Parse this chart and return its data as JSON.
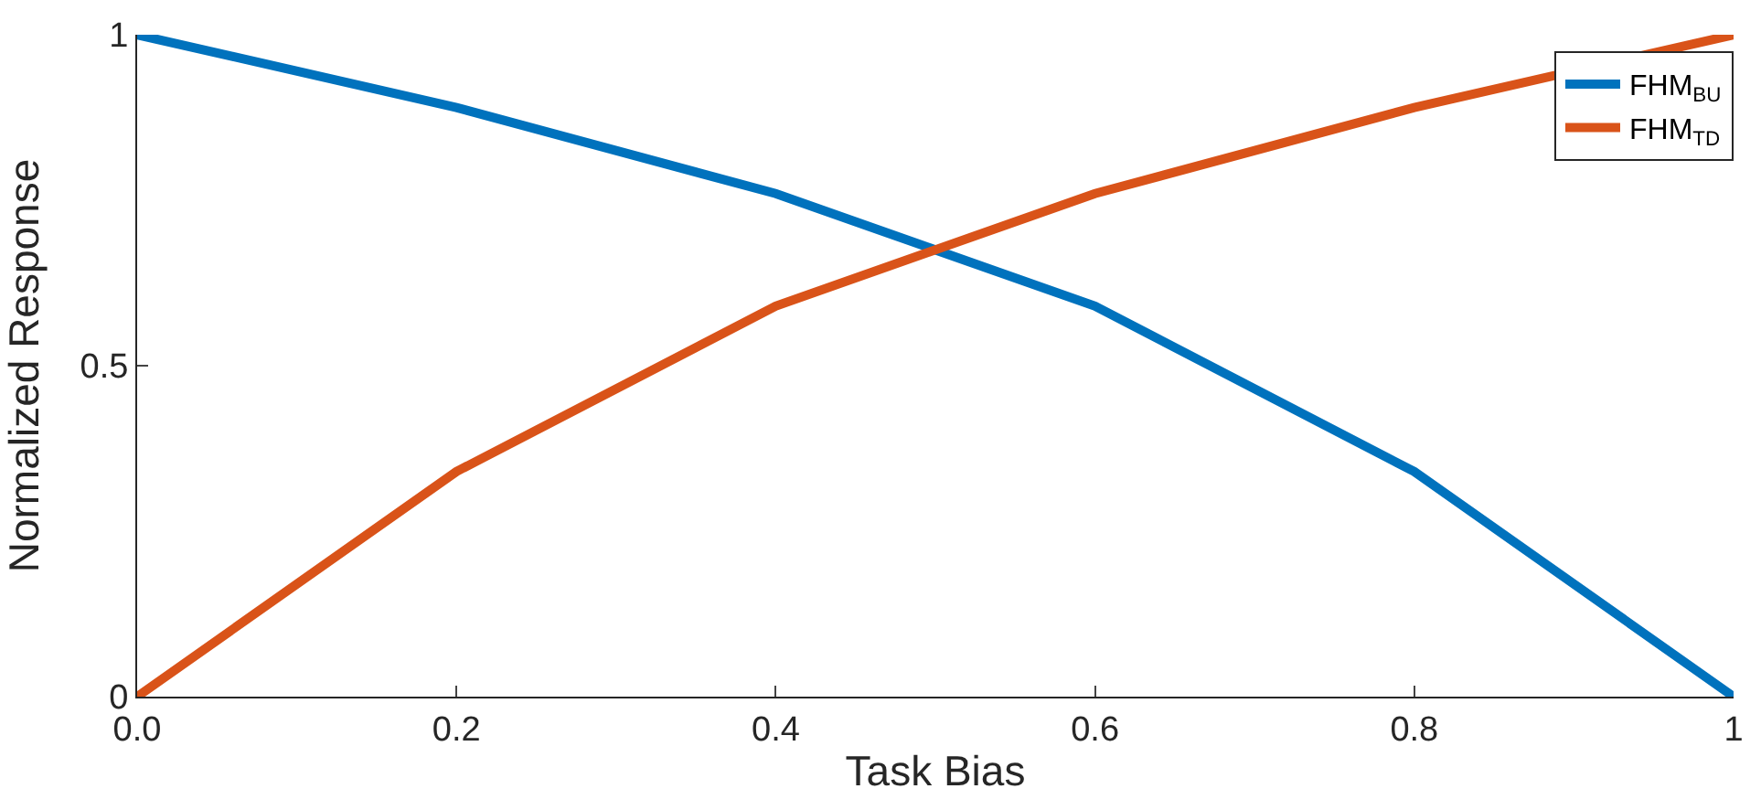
{
  "chart_data": {
    "type": "line",
    "xlabel": "Task Bias",
    "ylabel": "Normalized Response",
    "x": [
      0,
      0.2,
      0.4,
      0.6,
      0.8,
      1
    ],
    "series": [
      {
        "name": "FHM$_{BU}$",
        "color": "#0072bd",
        "values": [
          1,
          0.89,
          0.76,
          0.59,
          0.34,
          0
        ]
      },
      {
        "name": "FHM$_{TD}$",
        "color": "#d95319",
        "values": [
          0,
          0.34,
          0.59,
          0.76,
          0.89,
          1
        ]
      }
    ],
    "xlim": [
      0,
      1
    ],
    "xticks": [
      {
        "value": 0,
        "label": "0.0"
      },
      0.2,
      0.4,
      0.6,
      0.8,
      1
    ],
    "ylim": [
      0,
      1
    ],
    "yticks": [
      0,
      0.5,
      1
    ],
    "grid": false,
    "legend": "top right",
    "marker": "none",
    "line_style": "solid"
  }
}
